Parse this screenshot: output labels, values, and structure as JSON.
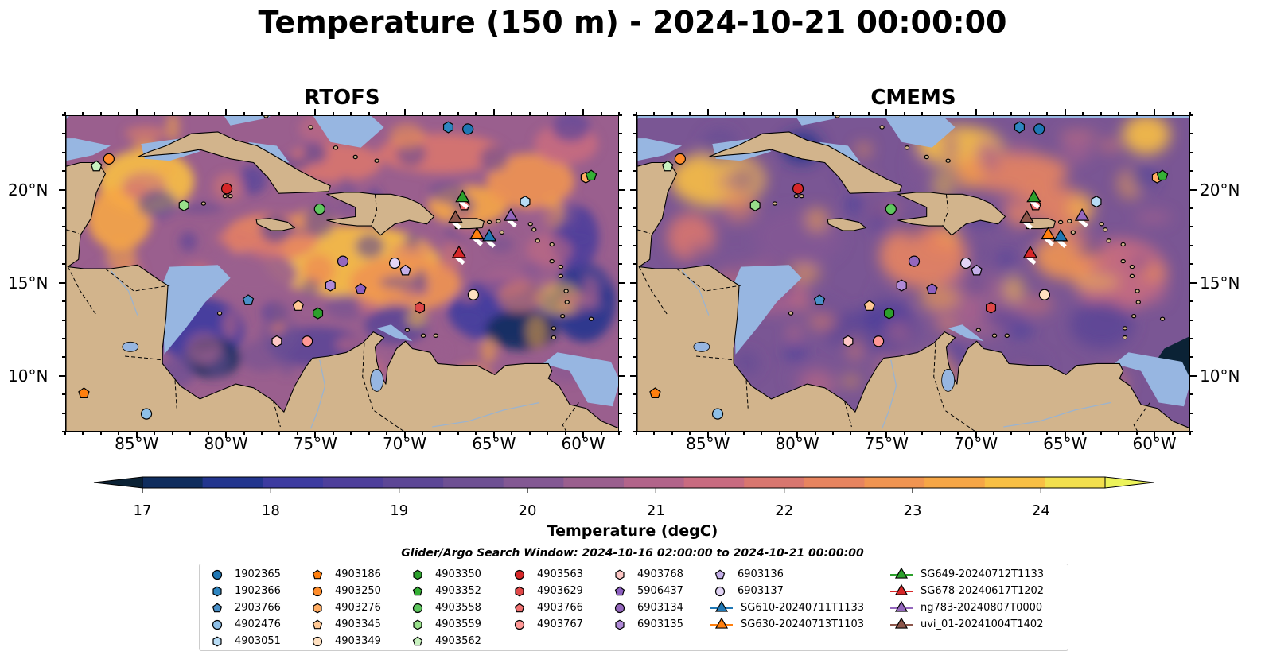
{
  "title": "Temperature (150 m) - 2024-10-21 00:00:00",
  "panels": [
    {
      "title": "RTOFS",
      "variant": "rtofs"
    },
    {
      "title": "CMEMS",
      "variant": "cmems"
    }
  ],
  "map": {
    "lon_range": [
      -89,
      -58
    ],
    "lat_range": [
      7,
      24
    ],
    "lon_ticks": [
      {
        "lon": -85,
        "label": "85°W"
      },
      {
        "lon": -80,
        "label": "80°W"
      },
      {
        "lon": -75,
        "label": "75°W"
      },
      {
        "lon": -70,
        "label": "70°W"
      },
      {
        "lon": -65,
        "label": "65°W"
      },
      {
        "lon": -60,
        "label": "60°W"
      }
    ],
    "lat_ticks": [
      {
        "lat": 20,
        "label": "20°N"
      },
      {
        "lat": 15,
        "label": "15°N"
      },
      {
        "lat": 10,
        "label": "10°N"
      }
    ],
    "colors": {
      "land": "#d2b48c",
      "shallow_water": "#97b6e1",
      "coastline": "#000000",
      "border": "#000000",
      "river": "#9bb3cf"
    }
  },
  "colorbar": {
    "label": "Temperature (degC)",
    "min": 17,
    "max": 24.5,
    "ticks": [
      17,
      18,
      19,
      20,
      21,
      22,
      23,
      24
    ],
    "extend": "both",
    "colors": [
      "#0b2235",
      "#0f2d5e",
      "#22358e",
      "#3d3ba0",
      "#4e3f9b",
      "#5d4796",
      "#6e5093",
      "#835893",
      "#9a5f8e",
      "#b2648a",
      "#c86b80",
      "#d8766f",
      "#e7845f",
      "#f09451",
      "#f6a646",
      "#f8bf44",
      "#f2df4e",
      "#ecf35a"
    ]
  },
  "search_window": "Glider/Argo Search Window: 2024-10-16 02:00:00 to 2024-10-21 00:00:00",
  "legend": {
    "columns": [
      [
        {
          "label": "1902365",
          "shape": "circle",
          "color": "#1f77b4"
        },
        {
          "label": "1902366",
          "shape": "hexagon",
          "color": "#2e86c1"
        },
        {
          "label": "2903766",
          "shape": "pentagon",
          "color": "#4a90c8"
        },
        {
          "label": "4902476",
          "shape": "circle",
          "color": "#8ec0e8"
        },
        {
          "label": "4903051",
          "shape": "hexagon",
          "color": "#b8dcf5"
        }
      ],
      [
        {
          "label": "4903186",
          "shape": "pentagon",
          "color": "#ff7f0e"
        },
        {
          "label": "4903250",
          "shape": "circle",
          "color": "#ff8c2a"
        },
        {
          "label": "4903276",
          "shape": "hexagon",
          "color": "#ffac62"
        },
        {
          "label": "4903345",
          "shape": "pentagon",
          "color": "#ffc894"
        },
        {
          "label": "4903349",
          "shape": "circle",
          "color": "#ffe0c0"
        }
      ],
      [
        {
          "label": "4903350",
          "shape": "hexagon",
          "color": "#2ca02c"
        },
        {
          "label": "4903352",
          "shape": "pentagon",
          "color": "#35b035"
        },
        {
          "label": "4903558",
          "shape": "circle",
          "color": "#5fc75f"
        },
        {
          "label": "4903559",
          "shape": "hexagon",
          "color": "#98df8a"
        },
        {
          "label": "4903562",
          "shape": "pentagon",
          "color": "#c9f2c0"
        }
      ],
      [
        {
          "label": "4903563",
          "shape": "circle",
          "color": "#d62728"
        },
        {
          "label": "4903629",
          "shape": "hexagon",
          "color": "#e04848"
        },
        {
          "label": "4903766",
          "shape": "pentagon",
          "color": "#f07070"
        },
        {
          "label": "4903767",
          "shape": "circle",
          "color": "#ff9896"
        }
      ],
      [
        {
          "label": "4903768",
          "shape": "hexagon",
          "color": "#ffc8c6"
        },
        {
          "label": "5906437",
          "shape": "pentagon",
          "color": "#8c5fc0"
        },
        {
          "label": "6903134",
          "shape": "circle",
          "color": "#9467bd"
        },
        {
          "label": "6903135",
          "shape": "hexagon",
          "color": "#b08ad8"
        }
      ],
      [
        {
          "label": "6903136",
          "shape": "pentagon",
          "color": "#c5b0e8"
        },
        {
          "label": "6903137",
          "shape": "circle",
          "color": "#e2d4f5"
        },
        {
          "label": "SG610-20240711T1133",
          "shape": "triangle",
          "color": "#1f77b4"
        },
        {
          "label": "SG630-20240713T1103",
          "shape": "triangle",
          "color": "#ff7f0e"
        }
      ],
      [
        {
          "label": "SG649-20240712T1133",
          "shape": "triangle",
          "color": "#2ca02c"
        },
        {
          "label": "SG678-20240617T1202",
          "shape": "triangle",
          "color": "#d62728"
        },
        {
          "label": "ng783-20240807T0000",
          "shape": "triangle",
          "color": "#9467bd"
        },
        {
          "label": "uvi_01-20241004T1402",
          "shape": "triangle",
          "color": "#8c564b"
        }
      ]
    ]
  },
  "markers": [
    {
      "id": "1902365",
      "lon": -66.5,
      "lat": 23.3
    },
    {
      "id": "1902366",
      "lon": -67.6,
      "lat": 23.4
    },
    {
      "id": "2903766",
      "lon": -78.8,
      "lat": 14.1
    },
    {
      "id": "4902476",
      "lon": -84.5,
      "lat": 8.0
    },
    {
      "id": "4903051",
      "lon": -63.3,
      "lat": 19.4
    },
    {
      "id": "4903186",
      "lon": -88.0,
      "lat": 9.1
    },
    {
      "id": "4903250",
      "lon": -86.6,
      "lat": 21.7
    },
    {
      "id": "4903276",
      "lon": -59.9,
      "lat": 20.7
    },
    {
      "id": "4903345",
      "lon": -76.0,
      "lat": 13.8
    },
    {
      "id": "4903349",
      "lon": -66.2,
      "lat": 14.4
    },
    {
      "id": "4903350",
      "lon": -74.9,
      "lat": 13.4
    },
    {
      "id": "4903352",
      "lon": -59.6,
      "lat": 20.8
    },
    {
      "id": "4903558",
      "lon": -74.8,
      "lat": 19.0
    },
    {
      "id": "4903559",
      "lon": -82.4,
      "lat": 19.2
    },
    {
      "id": "4903562",
      "lon": -87.3,
      "lat": 21.3
    },
    {
      "id": "4903563",
      "lon": -80.0,
      "lat": 20.1
    },
    {
      "id": "4903629",
      "lon": -69.2,
      "lat": 13.7
    },
    {
      "id": "4903766",
      "lon": -66.7,
      "lat": 19.2
    },
    {
      "id": "4903767",
      "lon": -75.5,
      "lat": 11.9
    },
    {
      "id": "4903768",
      "lon": -77.2,
      "lat": 11.9
    },
    {
      "id": "5906437",
      "lon": -72.5,
      "lat": 14.7
    },
    {
      "id": "6903134",
      "lon": -73.5,
      "lat": 16.2
    },
    {
      "id": "6903135",
      "lon": -74.2,
      "lat": 14.9
    },
    {
      "id": "6903136",
      "lon": -70.0,
      "lat": 15.7
    },
    {
      "id": "6903137",
      "lon": -70.6,
      "lat": 16.1
    },
    {
      "id": "SG610-20240711T1133",
      "lon": -65.3,
      "lat": 17.5
    },
    {
      "id": "SG630-20240713T1103",
      "lon": -66.0,
      "lat": 17.6
    },
    {
      "id": "SG649-20240712T1133",
      "lon": -66.8,
      "lat": 19.6
    },
    {
      "id": "SG678-20240617T1202",
      "lon": -67.0,
      "lat": 16.6
    },
    {
      "id": "ng783-20240807T0000",
      "lon": -64.1,
      "lat": 18.6
    },
    {
      "id": "uvi_01-20241004T1402",
      "lon": -67.2,
      "lat": 18.5
    }
  ]
}
